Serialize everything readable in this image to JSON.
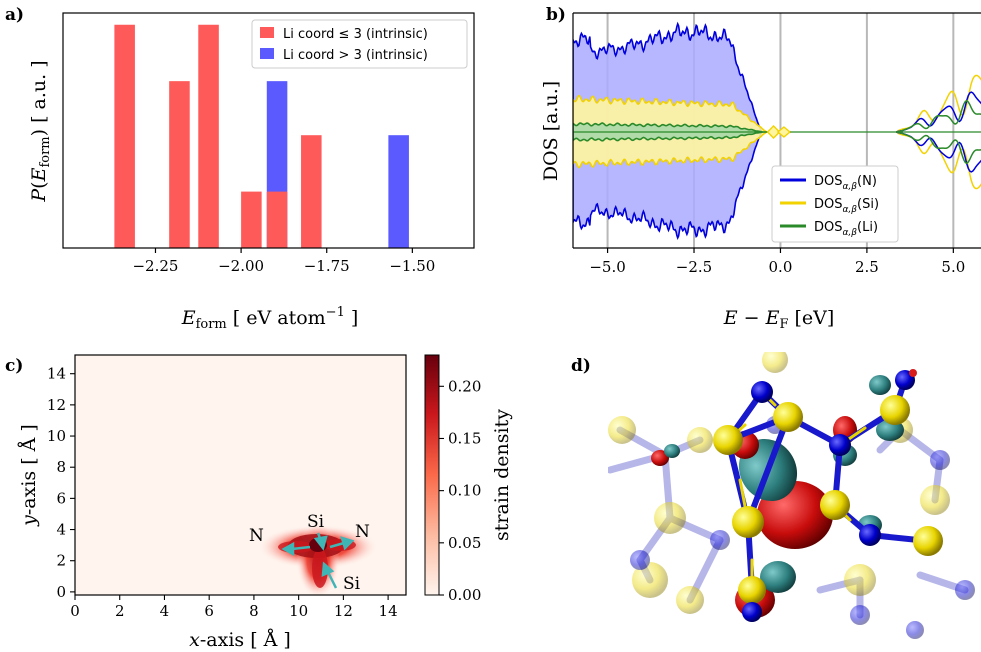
{
  "panels": {
    "a": "a)",
    "b": "b)",
    "c": "c)",
    "d": "d)"
  },
  "chart_data": [
    {
      "id": "a",
      "type": "bar",
      "xlabel": "E_form [ eV atom^-1 ]",
      "ylabel": "P(E_form) [ a.u. ]",
      "xlim": [
        -2.52,
        -1.32
      ],
      "ylim": [
        0,
        1.0
      ],
      "xticks": [
        "−2.25",
        "−2.00",
        "−1.75",
        "−1.50"
      ],
      "xtick_values": [
        -2.25,
        -2.0,
        -1.75,
        -1.5
      ],
      "legend": [
        "Li coord ≤ 3 (intrinsic)",
        "Li coord > 3 (intrinsic)"
      ],
      "legend_position": "top-right",
      "colors": [
        "#ff5a5a",
        "#5a5aff"
      ],
      "series": [
        {
          "name": "Li coord ≤ 3 (intrinsic)",
          "bars": [
            {
              "x": -2.34,
              "w": 0.06,
              "v": 0.95
            },
            {
              "x": -2.18,
              "w": 0.06,
              "v": 0.71
            },
            {
              "x": -2.095,
              "w": 0.06,
              "v": 0.95
            },
            {
              "x": -1.97,
              "w": 0.06,
              "v": 0.24
            },
            {
              "x": -1.895,
              "w": 0.06,
              "v": 0.24
            },
            {
              "x": -1.795,
              "w": 0.06,
              "v": 0.48
            }
          ]
        },
        {
          "name": "Li coord > 3 (intrinsic)",
          "bars": [
            {
              "x": -1.895,
              "w": 0.06,
              "v": 0.71
            },
            {
              "x": -1.54,
              "w": 0.06,
              "v": 0.48
            }
          ]
        }
      ]
    },
    {
      "id": "b",
      "type": "area",
      "xlabel": "E − E_F [eV]",
      "ylabel": "DOS [a.u.]",
      "xlim": [
        -6.0,
        5.8
      ],
      "xticks": [
        "−5.0",
        "−2.5",
        "0.0",
        "2.5",
        "5.0"
      ],
      "xtick_values": [
        -5.0,
        -2.5,
        0.0,
        2.5,
        5.0
      ],
      "grid": "vertical",
      "legend_position": "bottom-right",
      "legend": [
        "DOS_α,β(N)",
        "DOS_α,β(Si)",
        "DOS_α,β(Li)"
      ],
      "legend_base": "DOS",
      "legend_sub": "α,β",
      "legend_species": [
        "(N)",
        "(Si)",
        "(Li)"
      ],
      "colors": [
        "#0000dd",
        "#f2d200",
        "#2a8a2a"
      ]
    },
    {
      "id": "c",
      "type": "heatmap",
      "xlabel": "x-axis [ Å ]",
      "ylabel": "y-axis [ Å ]",
      "xlim": [
        0,
        14.8
      ],
      "ylim": [
        -0.2,
        15.2
      ],
      "xticks": [
        "0",
        "2",
        "4",
        "6",
        "8",
        "10",
        "12",
        "14"
      ],
      "yticks": [
        "0",
        "2",
        "4",
        "6",
        "8",
        "10",
        "12",
        "14"
      ],
      "colorbar_label": "strain density",
      "colorbar_ticks": [
        "0.00",
        "0.05",
        "0.10",
        "0.15",
        "0.20"
      ],
      "colorbar_range": [
        0,
        0.23
      ],
      "annotations": [
        "N",
        "Si",
        "N",
        "Si"
      ]
    }
  ]
}
